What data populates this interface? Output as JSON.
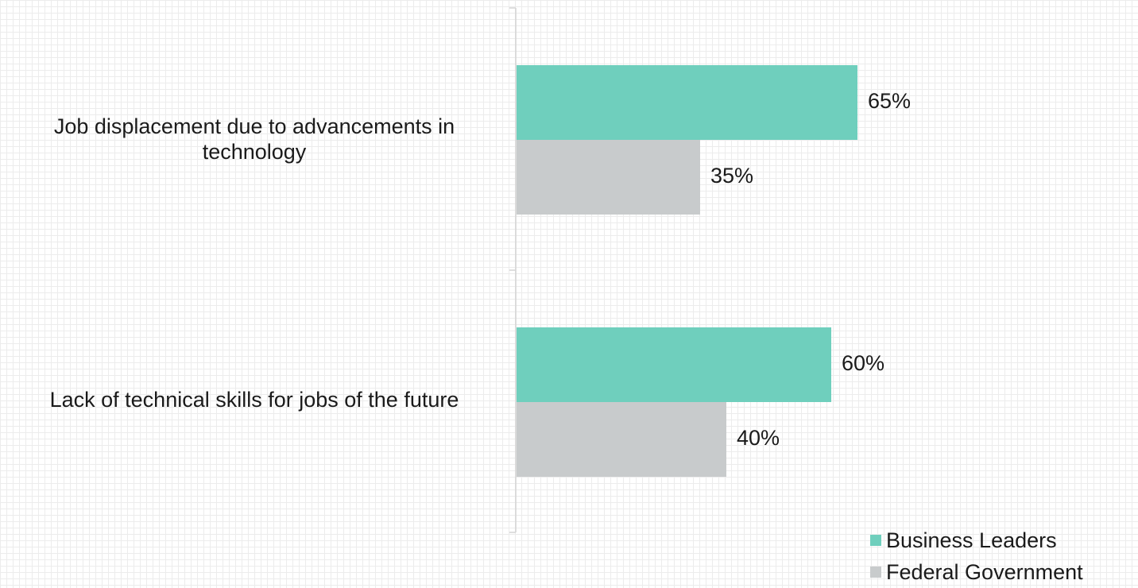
{
  "chart_data": {
    "type": "bar",
    "orientation": "horizontal",
    "categories": [
      "Job displacement due to advancements in technology",
      "Lack of technical skills for jobs of the future"
    ],
    "series": [
      {
        "name": "Business Leaders",
        "values": [
          65,
          60
        ],
        "color": "#6fcfbd"
      },
      {
        "name": "Federal Government",
        "values": [
          35,
          40
        ],
        "color": "#c8cbcc"
      }
    ],
    "value_labels": [
      [
        "65%",
        "60%"
      ],
      [
        "35%",
        "40%"
      ]
    ],
    "unit": "%",
    "xlim": [
      0,
      100
    ],
    "grid": true,
    "legend_position": "bottom-right",
    "title": "",
    "xlabel": "",
    "ylabel": ""
  }
}
